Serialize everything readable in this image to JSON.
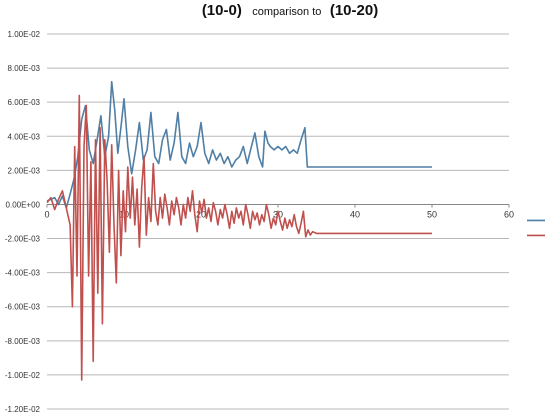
{
  "chart_data": {
    "type": "line",
    "title_parts": [
      "(10-0)",
      "comparison to",
      "(10-20)"
    ],
    "xlabel": "",
    "ylabel": "",
    "xlim": [
      0,
      60
    ],
    "ylim": [
      -0.012,
      0.01
    ],
    "x_ticks": [
      "0",
      "10",
      "20",
      "30",
      "40",
      "50",
      "60"
    ],
    "y_ticks": [
      "1.00E-02",
      "8.00E-03",
      "6.00E-03",
      "4.00E-03",
      "2.00E-03",
      "0.00E+00",
      "-2.00E-03",
      "-4.00E-03",
      "-6.00E-03",
      "-8.00E-03",
      "-1.00E-02",
      "-1.20E-02"
    ],
    "y_tick_values": [
      0.01,
      0.008,
      0.006,
      0.004,
      0.002,
      0,
      -0.002,
      -0.004,
      -0.006,
      -0.008,
      -0.01,
      -0.012
    ],
    "grid": "horizontal",
    "legend": "right",
    "series": [
      {
        "color": "#4f7fa6",
        "points": [
          [
            0,
            0.0002
          ],
          [
            1,
            0.0004
          ],
          [
            1.5,
            0
          ],
          [
            2,
            0.0005
          ],
          [
            2.5,
            -0.0002
          ],
          [
            3,
            0.0006
          ],
          [
            3.5,
            0.0015
          ],
          [
            4,
            0.0028
          ],
          [
            4.5,
            0.005
          ],
          [
            5,
            0.0058
          ],
          [
            5.5,
            0.0032
          ],
          [
            6,
            0.0024
          ],
          [
            6.5,
            0.0038
          ],
          [
            7,
            0.0052
          ],
          [
            7.5,
            0.0028
          ],
          [
            8,
            0.004
          ],
          [
            8.4,
            0.0072
          ],
          [
            8.8,
            0.0055
          ],
          [
            9.2,
            0.003
          ],
          [
            9.6,
            0.0045
          ],
          [
            10,
            0.0062
          ],
          [
            10.5,
            0.0034
          ],
          [
            11,
            0.0018
          ],
          [
            11.5,
            0.0032
          ],
          [
            12,
            0.0048
          ],
          [
            12.5,
            0.0026
          ],
          [
            13,
            0.0032
          ],
          [
            13.5,
            0.0054
          ],
          [
            14,
            0.0028
          ],
          [
            14.5,
            0.0024
          ],
          [
            15,
            0.0038
          ],
          [
            15.5,
            0.0044
          ],
          [
            16,
            0.0026
          ],
          [
            16.5,
            0.0036
          ],
          [
            17,
            0.0054
          ],
          [
            17.5,
            0.0028
          ],
          [
            18,
            0.0024
          ],
          [
            18.5,
            0.0036
          ],
          [
            19,
            0.0028
          ],
          [
            19.5,
            0.0034
          ],
          [
            20,
            0.0048
          ],
          [
            20.5,
            0.003
          ],
          [
            21,
            0.0024
          ],
          [
            21.5,
            0.0032
          ],
          [
            22,
            0.0026
          ],
          [
            22.5,
            0.003
          ],
          [
            23,
            0.0024
          ],
          [
            23.5,
            0.0028
          ],
          [
            24,
            0.0022
          ],
          [
            24.5,
            0.0026
          ],
          [
            25,
            0.0028
          ],
          [
            25.5,
            0.0034
          ],
          [
            26,
            0.0024
          ],
          [
            26.5,
            0.0033
          ],
          [
            27,
            0.0042
          ],
          [
            27.5,
            0.0028
          ],
          [
            28,
            0.0022
          ],
          [
            28.3,
            0.0043
          ],
          [
            28.7,
            0.0036
          ],
          [
            29,
            0.0034
          ],
          [
            29.5,
            0.0032
          ],
          [
            30,
            0.0034
          ],
          [
            30.5,
            0.0032
          ],
          [
            31,
            0.0034
          ],
          [
            31.5,
            0.003
          ],
          [
            32,
            0.0032
          ],
          [
            32.5,
            0.003
          ],
          [
            33,
            0.0038
          ],
          [
            33.5,
            0.0045
          ],
          [
            33.8,
            0.0022
          ],
          [
            35,
            0.0022
          ],
          [
            40,
            0.0022
          ],
          [
            45,
            0.0022
          ],
          [
            50,
            0.0022
          ]
        ]
      },
      {
        "color": "#c0504d",
        "points": [
          [
            0,
            0.0001
          ],
          [
            0.5,
            0.0004
          ],
          [
            1,
            -0.0003
          ],
          [
            1.5,
            0.0003
          ],
          [
            2,
            0.0008
          ],
          [
            2.5,
            -0.0002
          ],
          [
            3,
            -0.0012
          ],
          [
            3.3,
            -0.006
          ],
          [
            3.6,
            0.0034
          ],
          [
            3.9,
            -0.0042
          ],
          [
            4.2,
            0.0064
          ],
          [
            4.5,
            -0.0103
          ],
          [
            4.8,
            0.0034
          ],
          [
            5.1,
            0.0058
          ],
          [
            5.4,
            -0.0042
          ],
          [
            5.7,
            0.0025
          ],
          [
            6,
            -0.0092
          ],
          [
            6.3,
            0.0038
          ],
          [
            6.6,
            -0.0052
          ],
          [
            6.9,
            0.0045
          ],
          [
            7.2,
            -0.007
          ],
          [
            7.5,
            0.0038
          ],
          [
            7.8,
            0.0014
          ],
          [
            8.1,
            -0.0028
          ],
          [
            8.4,
            0.0035
          ],
          [
            8.7,
            -0.0012
          ],
          [
            9,
            -0.0046
          ],
          [
            9.3,
            0.002
          ],
          [
            9.6,
            -0.003
          ],
          [
            9.9,
            0.0008
          ],
          [
            10.2,
            -0.0016
          ],
          [
            10.5,
            0.0022
          ],
          [
            10.8,
            -0.0008
          ],
          [
            11.1,
            0.0016
          ],
          [
            11.4,
            -0.0012
          ],
          [
            11.7,
            0.0009
          ],
          [
            12,
            -0.0025
          ],
          [
            12.3,
            0.001
          ],
          [
            12.6,
            0.0028
          ],
          [
            12.9,
            -0.0018
          ],
          [
            13.2,
            0.0004
          ],
          [
            13.5,
            -0.001
          ],
          [
            13.8,
            0.0024
          ],
          [
            14.1,
            -0.0004
          ],
          [
            14.4,
            -0.0012
          ],
          [
            14.7,
            0.0004
          ],
          [
            15,
            -0.0008
          ],
          [
            15.3,
            0.0006
          ],
          [
            15.6,
            -0.0002
          ],
          [
            15.9,
            -0.0012
          ],
          [
            16.2,
            0.0002
          ],
          [
            16.5,
            -0.0006
          ],
          [
            16.8,
            0.0004
          ],
          [
            17.1,
            -0.0002
          ],
          [
            17.4,
            -0.0012
          ],
          [
            17.7,
            0.0
          ],
          [
            18,
            -0.0008
          ],
          [
            18.3,
            0.0004
          ],
          [
            18.6,
            -0.0004
          ],
          [
            18.9,
            0.0008
          ],
          [
            19.2,
            -0.0006
          ],
          [
            19.5,
            -0.0016
          ],
          [
            19.8,
            0.0002
          ],
          [
            20.1,
            -0.0005
          ],
          [
            20.4,
            0.0003
          ],
          [
            20.7,
            -0.0008
          ],
          [
            21,
            -0.0002
          ],
          [
            21.3,
            -0.001
          ],
          [
            21.6,
            0.0001
          ],
          [
            21.9,
            -0.0004
          ],
          [
            22.2,
            -0.0012
          ],
          [
            22.5,
            -0.0003
          ],
          [
            22.8,
            -0.0008
          ],
          [
            23.1,
            0.0
          ],
          [
            23.4,
            -0.0006
          ],
          [
            23.7,
            -0.0014
          ],
          [
            24,
            -0.0004
          ],
          [
            24.3,
            -0.0011
          ],
          [
            24.6,
            -0.0002
          ],
          [
            24.9,
            -0.0008
          ],
          [
            25.2,
            -0.0004
          ],
          [
            25.5,
            -0.0012
          ],
          [
            25.8,
            0.0
          ],
          [
            26.1,
            -0.0006
          ],
          [
            26.4,
            -0.0014
          ],
          [
            26.7,
            -0.0004
          ],
          [
            27,
            -0.0009
          ],
          [
            27.3,
            -0.0005
          ],
          [
            27.6,
            -0.0012
          ],
          [
            27.9,
            -0.0006
          ],
          [
            28.2,
            -0.001
          ],
          [
            28.5,
            0.0
          ],
          [
            28.8,
            -0.0006
          ],
          [
            29.1,
            -0.0014
          ],
          [
            29.4,
            -0.0008
          ],
          [
            29.7,
            -0.0012
          ],
          [
            30,
            -0.0004
          ],
          [
            30.3,
            -0.001
          ],
          [
            30.6,
            -0.0015
          ],
          [
            30.9,
            -0.0008
          ],
          [
            31.2,
            -0.0014
          ],
          [
            31.5,
            -0.0009
          ],
          [
            31.8,
            -0.0013
          ],
          [
            32.1,
            -0.0006
          ],
          [
            32.4,
            -0.0013
          ],
          [
            32.7,
            -0.0017
          ],
          [
            33,
            -0.0011
          ],
          [
            33.3,
            -0.0004
          ],
          [
            33.6,
            -0.0019
          ],
          [
            33.9,
            -0.0015
          ],
          [
            34.2,
            -0.0018
          ],
          [
            34.5,
            -0.0016
          ],
          [
            35,
            -0.0017
          ],
          [
            40,
            -0.0017
          ],
          [
            45,
            -0.0017
          ],
          [
            50,
            -0.0017
          ]
        ]
      }
    ]
  }
}
